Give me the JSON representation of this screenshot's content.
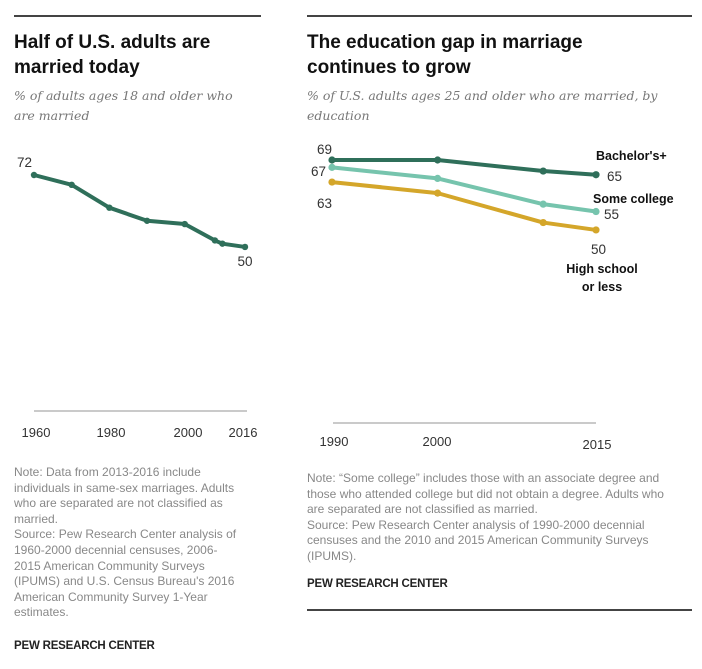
{
  "left": {
    "title_line1": "Half of U.S. adults are",
    "title_line2": "married today",
    "subtitle_line1": "% of adults ages 18 and older who",
    "subtitle_line2": "are married",
    "note_lines": [
      "Note: Data from 2013-2016 include",
      "individuals in same-sex marriages. Adults",
      "who are separated are not classified as",
      "married.",
      "Source: Pew Research Center analysis of",
      "1960-2000 decennial censuses, 2006-",
      "2015 American Community Surveys",
      "(IPUMS) and U.S. Census Bureau's 2016",
      "American Community Survey 1-Year",
      "estimates."
    ],
    "brand": "PEW RESEARCH CENTER"
  },
  "right": {
    "title_line1": "The education gap in marriage",
    "title_line2": "continues to grow",
    "subtitle_line1": "% of U.S. adults ages 25 and older who are married, by",
    "subtitle_line2": "education",
    "note_lines": [
      "Note: “Some college” includes those with an associate degree and",
      "those who attended college but did not obtain a degree. Adults who",
      "are separated are not classified as married.",
      "Source: Pew Research Center analysis of 1990-2000 decennial",
      "censuses and the 2010 and 2015 American Community Surveys",
      "(IPUMS)."
    ],
    "brand": "PEW RESEARCH CENTER"
  },
  "chart_data": [
    {
      "type": "line",
      "title": "Half of U.S. adults are married today",
      "subtitle": "% of adults ages 18 and older who are married",
      "x": [
        1960,
        1970,
        1980,
        1990,
        2000,
        2008,
        2010,
        2016
      ],
      "series": [
        {
          "name": "Married adults",
          "color": "#2f6f5a",
          "values": [
            72,
            69,
            62,
            58,
            57,
            52,
            51,
            50
          ]
        }
      ],
      "xticks": [
        1960,
        1980,
        2000,
        2016
      ],
      "xtick_labels": [
        "1960",
        "1980",
        "2000",
        "2016"
      ],
      "data_labels": [
        {
          "x": 1960,
          "label": "72"
        },
        {
          "x": 2016,
          "label": "50"
        }
      ],
      "xlim": [
        1960,
        2016
      ],
      "ylim": [
        0,
        75
      ],
      "grid": false,
      "xlabel": "",
      "ylabel": ""
    },
    {
      "type": "line",
      "title": "The education gap in marriage continues to grow",
      "subtitle": "% of U.S. adults ages 25 and older who are married, by education",
      "x": [
        1990,
        2000,
        2010,
        2015
      ],
      "series": [
        {
          "name": "Bachelor's+",
          "color": "#2f6f5a",
          "values": [
            69,
            69,
            66,
            65
          ],
          "start_label": "69",
          "end_label": "65"
        },
        {
          "name": "Some college",
          "color": "#76c4ad",
          "values": [
            67,
            64,
            57,
            55
          ],
          "start_label": "67",
          "end_label": "55"
        },
        {
          "name": "High school or less",
          "color": "#d4a62a",
          "values": [
            63,
            60,
            52,
            50
          ],
          "start_label": "63",
          "end_label": "50"
        }
      ],
      "series_label_lines": {
        "Bachelor's+": [
          "Bachelor's+"
        ],
        "Some college": [
          "Some college"
        ],
        "High school or less": [
          "High school",
          "or less"
        ]
      },
      "xticks": [
        1990,
        2000,
        2015
      ],
      "xtick_labels": [
        "1990",
        "2000",
        "2015"
      ],
      "xlim": [
        1990,
        2015
      ],
      "ylim": [
        0,
        75
      ],
      "grid": false,
      "xlabel": "",
      "ylabel": ""
    }
  ]
}
